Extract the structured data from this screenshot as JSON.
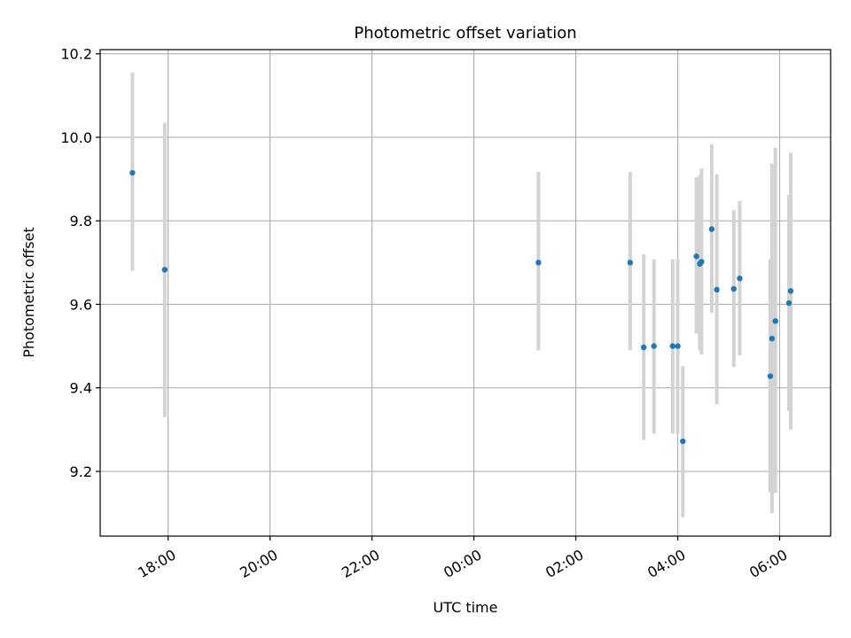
{
  "chart_data": {
    "type": "scatter",
    "title": "Photometric offset variation",
    "xlabel": "UTC time",
    "ylabel": "Photometric offset",
    "x_unit": "hours",
    "xlim": [
      16.6667,
      7.0
    ],
    "ylim": [
      9.045,
      10.21
    ],
    "grid": true,
    "x_ticks": [
      {
        "label": "18:00",
        "value": 18
      },
      {
        "label": "20:00",
        "value": 20
      },
      {
        "label": "22:00",
        "value": 22
      },
      {
        "label": "00:00",
        "value": 24
      },
      {
        "label": "02:00",
        "value": 26
      },
      {
        "label": "04:00",
        "value": 28
      },
      {
        "label": "06:00",
        "value": 30
      }
    ],
    "y_ticks": [
      {
        "label": "9.2",
        "value": 9.2
      },
      {
        "label": "9.4",
        "value": 9.4
      },
      {
        "label": "9.6",
        "value": 9.6
      },
      {
        "label": "9.8",
        "value": 9.8
      },
      {
        "label": "10.0",
        "value": 10.0
      },
      {
        "label": "10.2",
        "value": 10.2
      }
    ],
    "points": [
      {
        "time": "17:18",
        "y": 9.915,
        "lo": 9.68,
        "hi": 10.155
      },
      {
        "time": "17:56",
        "y": 9.683,
        "lo": 9.33,
        "hi": 10.035
      },
      {
        "time": "01:16",
        "y": 9.7,
        "lo": 9.49,
        "hi": 9.917
      },
      {
        "time": "03:04",
        "y": 9.7,
        "lo": 9.49,
        "hi": 9.917
      },
      {
        "time": "03:20",
        "y": 9.497,
        "lo": 9.275,
        "hi": 9.72
      },
      {
        "time": "03:32",
        "y": 9.5,
        "lo": 9.29,
        "hi": 9.708
      },
      {
        "time": "03:54",
        "y": 9.5,
        "lo": 9.29,
        "hi": 9.708
      },
      {
        "time": "04:00",
        "y": 9.5,
        "lo": 9.29,
        "hi": 9.708
      },
      {
        "time": "04:06",
        "y": 9.272,
        "lo": 9.09,
        "hi": 9.452
      },
      {
        "time": "04:22",
        "y": 9.715,
        "lo": 9.53,
        "hi": 9.905
      },
      {
        "time": "04:26",
        "y": 9.697,
        "lo": 9.49,
        "hi": 9.91
      },
      {
        "time": "04:28",
        "y": 9.702,
        "lo": 9.48,
        "hi": 9.925
      },
      {
        "time": "04:40",
        "y": 9.78,
        "lo": 9.58,
        "hi": 9.983
      },
      {
        "time": "04:46",
        "y": 9.635,
        "lo": 9.36,
        "hi": 9.912
      },
      {
        "time": "05:06",
        "y": 9.637,
        "lo": 9.45,
        "hi": 9.825
      },
      {
        "time": "05:13",
        "y": 9.662,
        "lo": 9.478,
        "hi": 9.848
      },
      {
        "time": "05:49",
        "y": 9.428,
        "lo": 9.15,
        "hi": 9.708
      },
      {
        "time": "05:51",
        "y": 9.518,
        "lo": 9.1,
        "hi": 9.937
      },
      {
        "time": "05:55",
        "y": 9.56,
        "lo": 9.148,
        "hi": 9.975
      },
      {
        "time": "06:11",
        "y": 9.603,
        "lo": 9.345,
        "hi": 9.862
      },
      {
        "time": "06:13",
        "y": 9.632,
        "lo": 9.3,
        "hi": 9.963
      }
    ]
  }
}
